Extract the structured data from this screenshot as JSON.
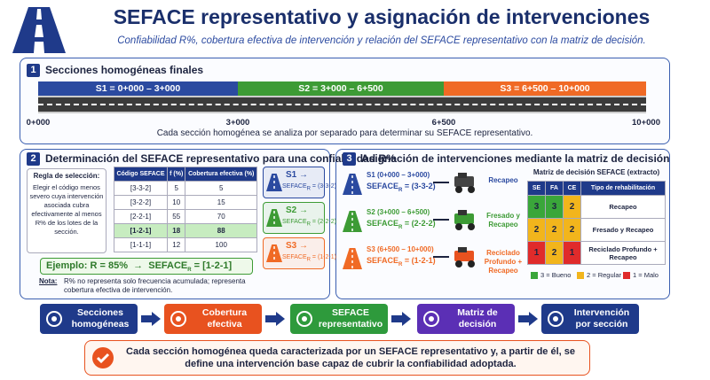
{
  "header": {
    "title": "SEFACE representativo y asignación de intervenciones",
    "subtitle": "Confiabilidad R%, cobertura efectiva de intervención y relación del SEFACE representativo con la matriz de decisión."
  },
  "section1": {
    "number": "1",
    "title": "Secciones homogéneas finales",
    "segments": [
      {
        "label": "S1 = 0+000 – 3+000",
        "color": "#2b4aa0"
      },
      {
        "label": "S2 = 3+000 – 6+500",
        "color": "#3d9b35"
      },
      {
        "label": "S3 = 6+500 – 10+000",
        "color": "#f06a25"
      }
    ],
    "stations": [
      "0+000",
      "3+000",
      "6+500",
      "10+000"
    ],
    "note": "Cada sección homogénea se analiza por separado para determinar su SEFACE representativo."
  },
  "section2": {
    "number": "2",
    "title": "Determinación del SEFACE representativo para una confiabilidad R%",
    "rule": {
      "title": "Regla de selección:",
      "text": "Elegir el código menos severo cuya intervención asociada cubra efectivamente al menos R% de los lotes de la sección."
    },
    "table": {
      "headers": [
        "Código SEFACE",
        "f (%)",
        "Cobertura efectiva (%)"
      ],
      "rows": [
        {
          "code": "[3-3-2]",
          "f": 5,
          "coverage": 5
        },
        {
          "code": "[3-2-2]",
          "f": 10,
          "coverage": 15
        },
        {
          "code": "[2-2-1]",
          "f": 55,
          "coverage": 70
        },
        {
          "code": "[1-2-1]",
          "f": 18,
          "coverage": 88,
          "selected": true
        },
        {
          "code": "[1-1-1]",
          "f": 12,
          "coverage": 100
        }
      ]
    },
    "cards": [
      {
        "name": "S1 →",
        "label": "SEFACE",
        "sub": "R",
        "code": "= (3-3-2)",
        "color": "#2b4aa0"
      },
      {
        "name": "S2 →",
        "label": "SEFACE",
        "sub": "R",
        "code": "= (2-2-2)",
        "color": "#3d9b35"
      },
      {
        "name": "S3 →",
        "label": "SEFACE",
        "sub": "R",
        "code": "= (1-2-1)",
        "color": "#f06a25"
      }
    ],
    "example": {
      "text": "Ejemplo: R = 85%  →  SEFACE",
      "sub": "R",
      "code": "= [1-2-1]"
    },
    "note": {
      "label": "Nota:",
      "text": "R% no representa solo frecuencia acumulada; representa cobertura efectiva de intervención."
    }
  },
  "section3": {
    "number": "3",
    "title": "Asignación de intervenciones mediante la matriz de decisión",
    "rows": [
      {
        "section": "S1 (0+000 – 3+000)",
        "label": "SEFACE",
        "sub": "R",
        "code": "= (3-3-2)",
        "action": "Recapeo",
        "color": "#2b4aa0"
      },
      {
        "section": "S2 (3+000 – 6+500)",
        "label": "SEFACE",
        "sub": "R",
        "code": "= (2-2-2)",
        "action": "Fresado y Recapeo",
        "color": "#3d9b35"
      },
      {
        "section": "S3 (6+500 – 10+000)",
        "label": "SEFACE",
        "sub": "R",
        "code": "= (1-2-1)",
        "action": "Reciclado Profundo + Recapeo",
        "color": "#f06a25"
      }
    ],
    "matrix": {
      "title": "Matriz de decisión SEFACE (extracto)",
      "headers": [
        "SE",
        "FA",
        "CE",
        "Tipo de rehabilitación"
      ],
      "rows": [
        [
          3,
          3,
          2,
          "Recapeo"
        ],
        [
          2,
          2,
          2,
          "Fresado y Recapeo"
        ],
        [
          1,
          2,
          1,
          "Reciclado Profundo + Recapeo"
        ]
      ],
      "legend": [
        "3 = Bueno",
        "2 = Regular",
        "1 = Malo"
      ]
    }
  },
  "flow": [
    {
      "label": "Secciones homogéneas",
      "color": "#1f3a8a"
    },
    {
      "label": "Cobertura efectiva",
      "color": "#e8521f"
    },
    {
      "label": "SEFACE representativo",
      "color": "#2e9a3c"
    },
    {
      "label": "Matriz de decisión",
      "color": "#5b2fb5"
    },
    {
      "label": "Intervención por sección",
      "color": "#1f3a8a"
    }
  ],
  "footer": {
    "text": "Cada sección homogénea queda caracterizada por un SEFACE representativo y, a partir de él, se define una intervención base capaz de cubrir la confiabilidad adoptada."
  }
}
